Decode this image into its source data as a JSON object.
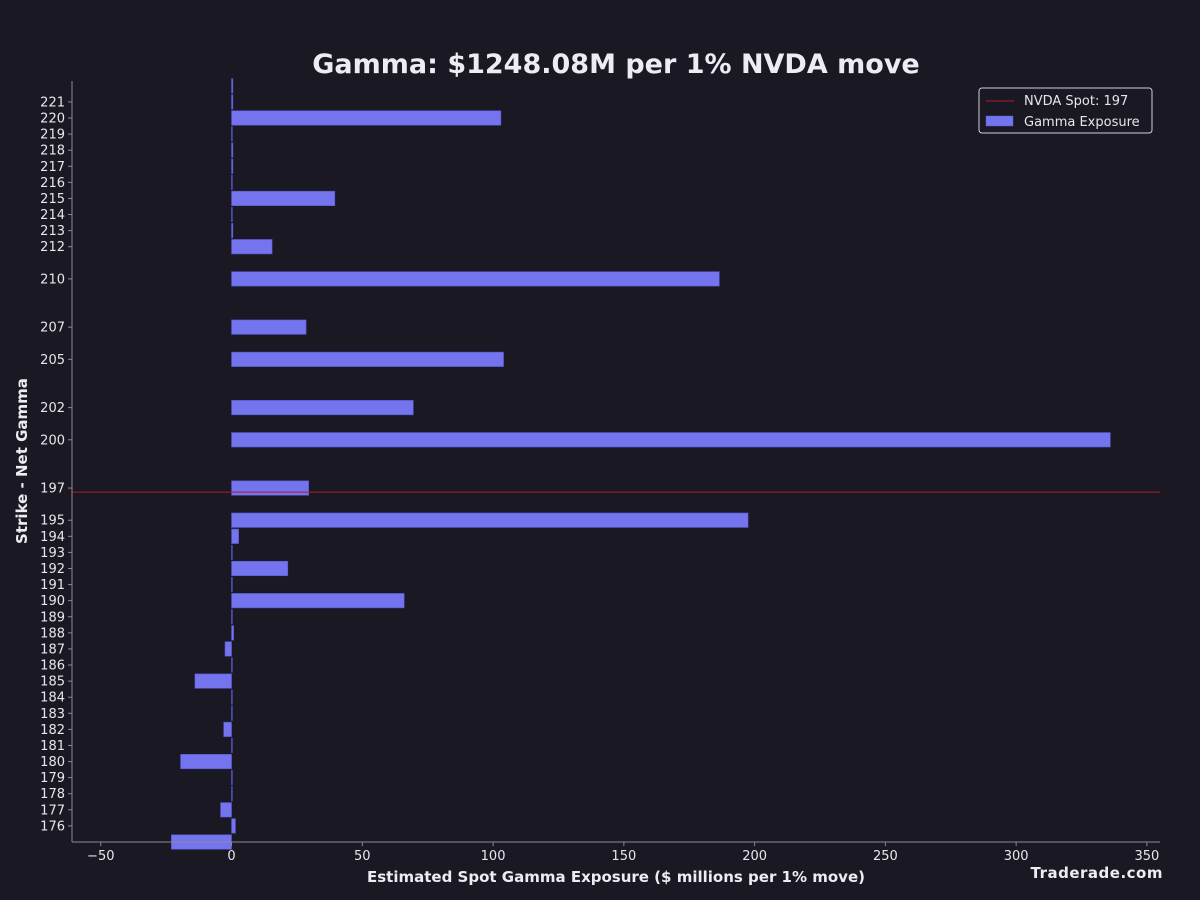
{
  "chart_data": {
    "type": "bar",
    "orientation": "horizontal",
    "title": "Gamma: $1248.08M per 1% NVDA move",
    "xlabel": "Estimated Spot Gamma Exposure ($ millions per 1% move)",
    "ylabel": "Strike - Net Gamma",
    "xlim": [
      -61,
      355
    ],
    "ylim": [
      175,
      222.3
    ],
    "x_ticks": [
      -50,
      0,
      50,
      100,
      150,
      200,
      250,
      300,
      350
    ],
    "x_tick_labels": [
      "−50",
      "0",
      "50",
      "100",
      "150",
      "200",
      "250",
      "300",
      "350"
    ],
    "y_ticks": [
      176,
      177,
      178,
      179,
      180,
      181,
      182,
      183,
      184,
      185,
      186,
      187,
      188,
      189,
      190,
      191,
      192,
      193,
      194,
      195,
      197,
      200,
      202,
      205,
      207,
      210,
      212,
      213,
      214,
      215,
      216,
      217,
      218,
      219,
      220,
      221
    ],
    "bar_height_strikes": 0.9,
    "series": [
      {
        "name": "Gamma Exposure",
        "color": "#7474ee",
        "points": [
          {
            "strike": 175,
            "value": -23
          },
          {
            "strike": 176,
            "value": 1.5
          },
          {
            "strike": 177,
            "value": -4.2
          },
          {
            "strike": 178,
            "value": 0
          },
          {
            "strike": 179,
            "value": 0.2
          },
          {
            "strike": 180,
            "value": -19.5
          },
          {
            "strike": 181,
            "value": 0
          },
          {
            "strike": 182,
            "value": -3
          },
          {
            "strike": 183,
            "value": 0
          },
          {
            "strike": 184,
            "value": 0
          },
          {
            "strike": 185,
            "value": -14
          },
          {
            "strike": 186,
            "value": 0
          },
          {
            "strike": 187,
            "value": -2.5
          },
          {
            "strike": 188,
            "value": 0.8
          },
          {
            "strike": 189,
            "value": 0.2
          },
          {
            "strike": 190,
            "value": 66
          },
          {
            "strike": 191,
            "value": 0
          },
          {
            "strike": 192,
            "value": 21.5
          },
          {
            "strike": 193,
            "value": 0.3
          },
          {
            "strike": 194,
            "value": 2.7
          },
          {
            "strike": 195,
            "value": 197.5
          },
          {
            "strike": 197,
            "value": 29.5
          },
          {
            "strike": 200,
            "value": 336
          },
          {
            "strike": 202,
            "value": 69.5
          },
          {
            "strike": 205,
            "value": 104
          },
          {
            "strike": 207,
            "value": 28.5
          },
          {
            "strike": 210,
            "value": 186.5
          },
          {
            "strike": 212,
            "value": 15.5
          },
          {
            "strike": 213,
            "value": 0.5
          },
          {
            "strike": 214,
            "value": 0
          },
          {
            "strike": 215,
            "value": 39.5
          },
          {
            "strike": 216,
            "value": 0
          },
          {
            "strike": 217,
            "value": 0.5
          },
          {
            "strike": 218,
            "value": 0.5
          },
          {
            "strike": 219,
            "value": 0
          },
          {
            "strike": 220,
            "value": 103
          },
          {
            "strike": 221,
            "value": 0.5
          },
          {
            "strike": 222,
            "value": 0.5
          }
        ]
      }
    ],
    "spot_line": {
      "label": "NVDA Spot: 197",
      "value": 196.75,
      "color": "#b01a26"
    },
    "legend": {
      "position": "top-right",
      "entries": [
        "NVDA Spot: 197",
        "Gamma Exposure"
      ]
    }
  },
  "watermark": "Traderade.com"
}
